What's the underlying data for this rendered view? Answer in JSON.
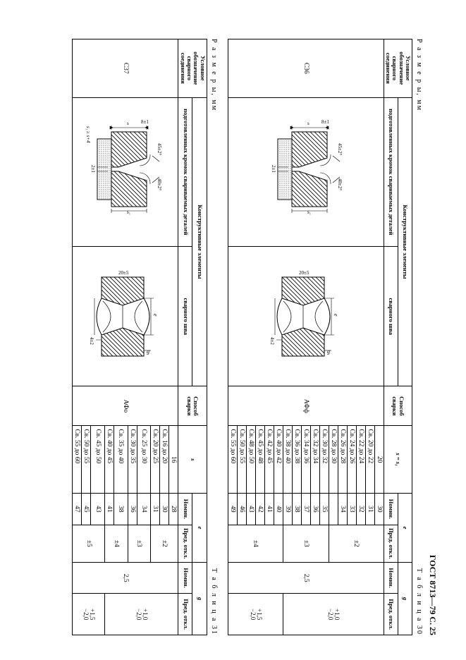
{
  "doc_header": "ГОСТ 8713—79 С. 25",
  "dims_label": "Р а з м е р ы, мм",
  "tables_label_prefix": "Т а б л и ц а",
  "headers": {
    "col1": "Условное обозначение сварного соединения",
    "col2": "Конструктивные элементы",
    "col2a": "подготовленных кромок свариваемых деталей",
    "col2b": "сварного шва",
    "col3": "Способ сварки",
    "s_eq": "s = s",
    "s_only": "s",
    "e": "e",
    "g": "g",
    "nomin": "Номин.",
    "otkl": "Пред. откл."
  },
  "tables": [
    {
      "num": "30",
      "code": "С36",
      "method": "АФф",
      "s_header_var": "s = s₁",
      "g_nomin": "2,5",
      "s_first": "20",
      "e_first": "30",
      "blocks": [
        {
          "tol_e": "±2",
          "tol_g": "+1,0\n−2,0",
          "rows": [
            [
              "Св. 20 до 22",
              "31"
            ],
            [
              "Св. 22 до 24",
              "32"
            ],
            [
              "Св. 24 до 26",
              "33"
            ],
            [
              "Св. 26 до 28",
              "34"
            ],
            [
              "Св. 28 до 30",
              ""
            ]
          ]
        },
        {
          "tol_e": "±3",
          "tol_g": "",
          "rows": [
            [
              "Св. 30 до 32",
              "35"
            ],
            [
              "Св. 32 до 34",
              "36"
            ],
            [
              "Св. 34 до 36",
              "37"
            ],
            [
              "Св. 36 до 38",
              "38"
            ],
            [
              "Св. 38 до 40",
              "39"
            ]
          ]
        },
        {
          "tol_e": "±4",
          "tol_g": "+1,5\n−2,0",
          "rows": [
            [
              "Св. 40 до 42",
              "40"
            ],
            [
              "Св. 42 до 45",
              "41"
            ],
            [
              "Св. 45 до 48",
              "42"
            ],
            [
              "Св. 48 до 50",
              "43"
            ],
            [
              "Св. 50 до 55",
              "46"
            ],
            [
              "Св. 55 до 60",
              "49"
            ]
          ]
        }
      ]
    },
    {
      "num": "31",
      "code": "С37",
      "method": "АФо",
      "s_header_var": "s",
      "extra_note": "s₁ ≥ s+4",
      "g_nomin": "2,5",
      "s_first": "16",
      "e_first": "28",
      "blocks": [
        {
          "tol_e": "±2",
          "tol_g": "+1,0\n−2,0",
          "rows": [
            [
              "Св. 16 до 20",
              "30"
            ],
            [
              "Св. 20 до 25",
              "31"
            ]
          ]
        },
        {
          "tol_e": "±3",
          "tol_g": "",
          "rows": [
            [
              "Св. 25 до 30",
              "34"
            ],
            [
              "Св. 30 до 35",
              "36"
            ]
          ]
        },
        {
          "tol_e": "±4",
          "tol_g": "",
          "rows": [
            [
              "Св. 35 до 40",
              "38"
            ],
            [
              "Св. 40 до 45",
              "41"
            ]
          ]
        },
        {
          "tol_e": "±5",
          "tol_g": "+1,5\n−2,0",
          "rows": [
            [
              "Св. 45 до 50",
              "43"
            ],
            [
              "Св. 50 до 55",
              "45"
            ],
            [
              "Св. 55 до 60",
              "47"
            ]
          ]
        }
      ]
    }
  ],
  "colors": {
    "line": "#000000",
    "hatch": "#000000",
    "bg": "#ffffff"
  }
}
